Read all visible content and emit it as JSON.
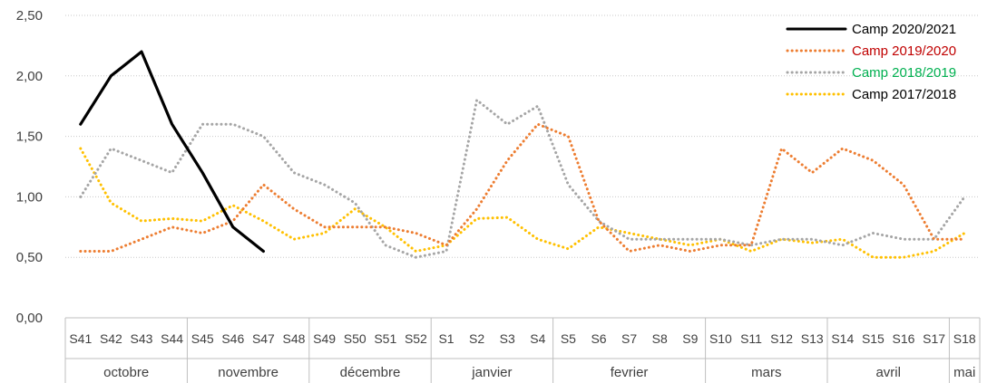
{
  "chart_data": {
    "type": "line",
    "title": "",
    "xlabel": "",
    "ylabel": "",
    "ylim": [
      0,
      2.5
    ],
    "yticks": [
      "0,00",
      "0,50",
      "1,00",
      "1,50",
      "2,00",
      "2,50"
    ],
    "grid": true,
    "legend_position": "top-right",
    "categories": [
      "S41",
      "S42",
      "S43",
      "S44",
      "S45",
      "S46",
      "S47",
      "S48",
      "S49",
      "S50",
      "S51",
      "S52",
      "S1",
      "S2",
      "S3",
      "S4",
      "S5",
      "S6",
      "S7",
      "S8",
      "S9",
      "S10",
      "S11",
      "S12",
      "S13",
      "S14",
      "S15",
      "S16",
      "S17",
      "S18"
    ],
    "months": [
      {
        "label": "octobre",
        "weeks": 4
      },
      {
        "label": "novembre",
        "weeks": 4
      },
      {
        "label": "décembre",
        "weeks": 4
      },
      {
        "label": "janvier",
        "weeks": 4
      },
      {
        "label": "fevrier",
        "weeks": 5
      },
      {
        "label": "mars",
        "weeks": 4
      },
      {
        "label": "avril",
        "weeks": 4
      },
      {
        "label": "mai",
        "weeks": 1
      }
    ],
    "series": [
      {
        "name": "Camp 2020/2021",
        "color": "#000000",
        "legend_text_color": "#000000",
        "style": "solid",
        "values": [
          1.6,
          2.0,
          2.2,
          1.6,
          1.2,
          0.75,
          0.55,
          null,
          null,
          null,
          null,
          null,
          null,
          null,
          null,
          null,
          null,
          null,
          null,
          null,
          null,
          null,
          null,
          null,
          null,
          null,
          null,
          null,
          null,
          null
        ]
      },
      {
        "name": "Camp 2019/2020",
        "color": "#ED7D31",
        "legend_text_color": "#C00000",
        "style": "dotted",
        "values": [
          0.55,
          0.55,
          0.65,
          0.75,
          0.7,
          0.8,
          1.1,
          0.9,
          0.75,
          0.75,
          0.75,
          0.7,
          0.6,
          0.9,
          1.3,
          1.6,
          1.5,
          0.8,
          0.55,
          0.6,
          0.55,
          0.6,
          0.6,
          1.4,
          1.2,
          1.4,
          1.3,
          1.1,
          0.65,
          0.65
        ]
      },
      {
        "name": "Camp 2018/2019",
        "color": "#A5A5A5",
        "legend_text_color": "#00B050",
        "style": "dotted",
        "values": [
          1.0,
          1.4,
          1.3,
          1.2,
          1.6,
          1.6,
          1.5,
          1.2,
          1.1,
          0.95,
          0.6,
          0.5,
          0.55,
          1.8,
          1.6,
          1.75,
          1.1,
          0.8,
          0.65,
          0.65,
          0.65,
          0.65,
          0.6,
          0.65,
          0.65,
          0.6,
          0.7,
          0.65,
          0.65,
          1.0
        ]
      },
      {
        "name": "Camp 2017/2018",
        "color": "#FFC000",
        "legend_text_color": "#000000",
        "style": "dotted",
        "values": [
          1.4,
          0.95,
          0.8,
          0.82,
          0.8,
          0.93,
          0.8,
          0.65,
          0.7,
          0.9,
          0.75,
          0.55,
          0.6,
          0.82,
          0.83,
          0.65,
          0.57,
          0.75,
          0.7,
          0.65,
          0.6,
          0.65,
          0.55,
          0.65,
          0.62,
          0.65,
          0.5,
          0.5,
          0.55,
          0.7
        ]
      }
    ]
  }
}
